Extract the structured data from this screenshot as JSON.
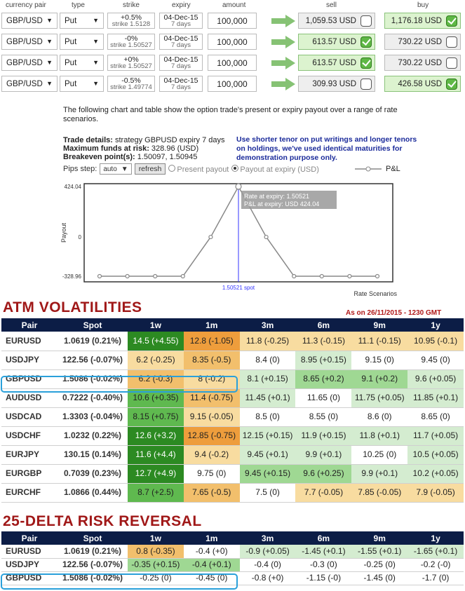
{
  "columns": [
    "currency pair",
    "type",
    "strike",
    "expiry",
    "amount",
    "sell",
    "buy"
  ],
  "legs": [
    {
      "pair": "GBP/USD",
      "type": "Put",
      "strike_pct": "+0.5%",
      "strike": "strike 1.5128",
      "expiry": "04-Dec-15",
      "tenor": "7 days",
      "amount": "100,000",
      "sell": "1,059.53 USD",
      "buy": "1,176.18 USD",
      "sell_on": false,
      "buy_on": true
    },
    {
      "pair": "GBP/USD",
      "type": "Put",
      "strike_pct": "-0%",
      "strike": "strike 1.50527",
      "expiry": "04-Dec-15",
      "tenor": "7 days",
      "amount": "100,000",
      "sell": "613.57 USD",
      "buy": "730.22 USD",
      "sell_on": true,
      "buy_on": false
    },
    {
      "pair": "GBP/USD",
      "type": "Put",
      "strike_pct": "+0%",
      "strike": "strike 1.50527",
      "expiry": "04-Dec-15",
      "tenor": "7 days",
      "amount": "100,000",
      "sell": "613.57 USD",
      "buy": "730.22 USD",
      "sell_on": true,
      "buy_on": false
    },
    {
      "pair": "GBP/USD",
      "type": "Put",
      "strike_pct": "-0.5%",
      "strike": "strike 1.49774",
      "expiry": "04-Dec-15",
      "tenor": "7 days",
      "amount": "100,000",
      "sell": "309.93 USD",
      "buy": "426.58 USD",
      "sell_on": false,
      "buy_on": true
    }
  ],
  "intro": "The following chart and table show the option trade's present or expiry payout over a range of rate scenarios.",
  "details": {
    "trade_label": "Trade details:",
    "trade_value": " strategy GBPUSD expiry 7 days",
    "funds_label": "Maximum funds at risk:",
    "funds_value": " 328.96 (USD)",
    "breakeven_label": "Breakeven point(s):",
    "breakeven_value": " 1.50097, 1.50945"
  },
  "note": "Use shorter tenor on put writings and longer tenors on holdings, we've used identical maturities for demonstration purpose only.",
  "controls": {
    "pips_label": "Pips step:",
    "pips_value": "auto",
    "refresh": "refresh",
    "present": "Present payout",
    "expiry": "Payout at expiry (USD)"
  },
  "chart_data": {
    "type": "line",
    "ylabel": "Payout",
    "xlabel": "Rate Scenarios",
    "legend": "P&L",
    "y_ticks": [
      "424.04",
      "0",
      "-328.96"
    ],
    "ylim": [
      -328.96,
      424.04
    ],
    "x_label_spot": "1.50521 spot",
    "values": [
      -328.96,
      -328.96,
      -328.96,
      -328.96,
      0,
      424.04,
      0,
      -328.96,
      -328.96,
      -328.96,
      -328.96
    ],
    "tooltip_line1": "Rate at expiry: 1.50521",
    "tooltip_line2": "P&L at expiry: USD 424.04",
    "colors": {
      "line": "#888888",
      "spot": "#3333ff"
    }
  },
  "vol": {
    "title": "ATM VOLATILITIES",
    "as_of": "As on 26/11/2015 - 1230 GMT",
    "headers": [
      "Pair",
      "Spot",
      "1w",
      "1m",
      "3m",
      "6m",
      "9m",
      "1y"
    ],
    "rows": [
      {
        "pair": "EURUSD",
        "spot": "1.0619 (0.21%)",
        "cells": [
          "14.5 (+4.55)",
          "12.8 (-1.05)",
          "11.8 (-0.25)",
          "11.3 (-0.15)",
          "11.1 (-0.15)",
          "10.95 (-0.1)"
        ],
        "classes": [
          "c4",
          "c7",
          "c5",
          "c5",
          "c5",
          "c5"
        ]
      },
      {
        "pair": "USDJPY",
        "spot": "122.56 (-0.07%)",
        "cells": [
          "6.2 (-0.25)",
          "8.35 (-0.5)",
          "8.4 (0)",
          "8.95 (+0.15)",
          "9.15 (0)",
          "9.45 (0)"
        ],
        "classes": [
          "c5",
          "c6",
          "c0",
          "c1",
          "c0",
          "c0"
        ]
      },
      {
        "pair": "GBPUSD",
        "spot": "1.5086 (-0.02%)",
        "cells": [
          "6.2 (-0.3)",
          "8 (-0.2)",
          "8.1 (+0.15)",
          "8.65 (+0.2)",
          "9.1 (+0.2)",
          "9.6 (+0.05)"
        ],
        "classes": [
          "c6",
          "c5",
          "c1",
          "c2",
          "c2",
          "c1"
        ]
      },
      {
        "pair": "AUDUSD",
        "spot": "0.7222 (-0.40%)",
        "cells": [
          "10.6 (+0.35)",
          "11.4 (-0.75)",
          "11.45 (+0.1)",
          "11.65 (0)",
          "11.75 (+0.05)",
          "11.85 (+0.1)"
        ],
        "classes": [
          "c3",
          "c6",
          "c1",
          "c0",
          "c1",
          "c1"
        ]
      },
      {
        "pair": "USDCAD",
        "spot": "1.3303 (-0.04%)",
        "cells": [
          "8.15 (+0.75)",
          "9.15 (-0.05)",
          "8.5 (0)",
          "8.55 (0)",
          "8.6 (0)",
          "8.65 (0)"
        ],
        "classes": [
          "c3",
          "c5",
          "c0",
          "c0",
          "c0",
          "c0"
        ]
      },
      {
        "pair": "USDCHF",
        "spot": "1.0232 (0.22%)",
        "cells": [
          "12.6 (+3.2)",
          "12.85 (-0.75)",
          "12.15 (+0.15)",
          "11.9 (+0.15)",
          "11.8 (+0.1)",
          "11.7 (+0.05)"
        ],
        "classes": [
          "c4",
          "c7",
          "c1",
          "c1",
          "c1",
          "c1"
        ]
      },
      {
        "pair": "EURJPY",
        "spot": "130.15 (0.14%)",
        "cells": [
          "11.6 (+4.4)",
          "9.4 (-0.2)",
          "9.45 (+0.1)",
          "9.9 (+0.1)",
          "10.25 (0)",
          "10.5 (+0.05)"
        ],
        "classes": [
          "c4",
          "c5",
          "c1",
          "c1",
          "c0",
          "c1"
        ]
      },
      {
        "pair": "EURGBP",
        "spot": "0.7039 (0.23%)",
        "cells": [
          "12.7 (+4.9)",
          "9.75 (0)",
          "9.45 (+0.15)",
          "9.6 (+0.25)",
          "9.9 (+0.1)",
          "10.2 (+0.05)"
        ],
        "classes": [
          "c4",
          "c0",
          "c2",
          "c2",
          "c1",
          "c1"
        ]
      },
      {
        "pair": "EURCHF",
        "spot": "1.0866 (0.44%)",
        "cells": [
          "8.7 (+2.5)",
          "7.65 (-0.5)",
          "7.5 (0)",
          "7.7 (-0.05)",
          "7.85 (-0.05)",
          "7.9 (-0.05)"
        ],
        "classes": [
          "c3",
          "c6",
          "c0",
          "c5",
          "c5",
          "c5"
        ]
      }
    ]
  },
  "rr": {
    "title": "25-DELTA RISK REVERSAL",
    "headers": [
      "Pair",
      "Spot",
      "1w",
      "1m",
      "3m",
      "6m",
      "9m",
      "1y"
    ],
    "rows": [
      {
        "pair": "EURUSD",
        "spot": "1.0619 (0.21%)",
        "cells": [
          "0.8 (-0.35)",
          "-0.4 (+0)",
          "-0.9 (+0.05)",
          "-1.45 (+0.1)",
          "-1.55 (+0.1)",
          "-1.65 (+0.1)"
        ],
        "classes": [
          "c6",
          "c0",
          "c1",
          "c1",
          "c1",
          "c1"
        ]
      },
      {
        "pair": "USDJPY",
        "spot": "122.56 (-0.07%)",
        "cells": [
          "-0.35 (+0.15)",
          "-0.4 (+0.1)",
          "-0.4 (0)",
          "-0.3 (0)",
          "-0.25 (0)",
          "-0.2 (-0)"
        ],
        "classes": [
          "c2",
          "c2",
          "c0",
          "c0",
          "c0",
          "c0"
        ]
      },
      {
        "pair": "GBPUSD",
        "spot": "1.5086 (-0.02%)",
        "cells": [
          "-0.25 (0)",
          "-0.45 (0)",
          "-0.8 (+0)",
          "-1.15 (-0)",
          "-1.45 (0)",
          "-1.7 (0)"
        ],
        "classes": [
          "c0",
          "c0",
          "c0",
          "c0",
          "c0",
          "c0"
        ]
      }
    ]
  }
}
